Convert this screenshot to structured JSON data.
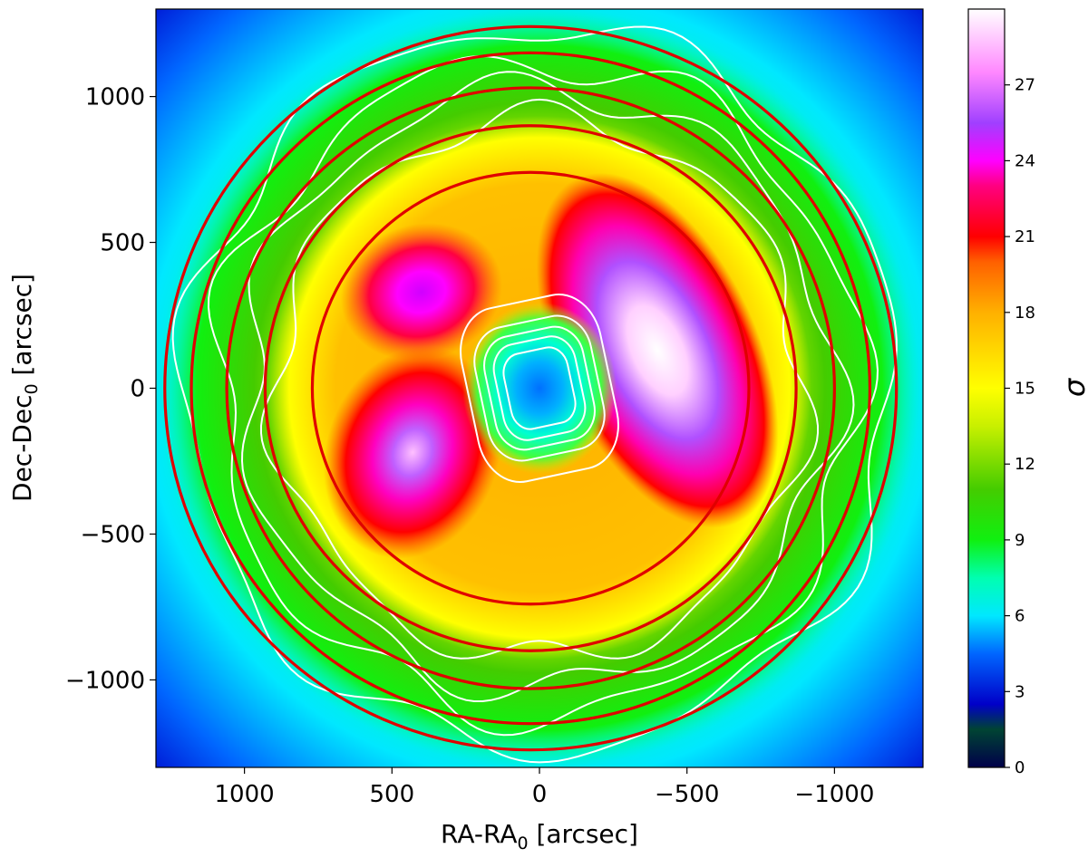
{
  "chart_data": {
    "type": "heatmap",
    "title": "",
    "xlabel": {
      "base": "RA-RA",
      "sub": "0",
      "unit": " [arcsec]"
    },
    "ylabel": {
      "base": "Dec-Dec",
      "sub": "0",
      "unit": " [arcsec]"
    },
    "colorbar_label": "σ",
    "xlim": [
      1300,
      -1300
    ],
    "ylim": [
      -1300,
      1300
    ],
    "x_ticks": [
      {
        "value": 1000,
        "label": "1000"
      },
      {
        "value": 500,
        "label": "500"
      },
      {
        "value": 0,
        "label": "0"
      },
      {
        "value": -500,
        "label": "−500"
      },
      {
        "value": -1000,
        "label": "−1000"
      }
    ],
    "y_ticks": [
      {
        "value": 1000,
        "label": "1000"
      },
      {
        "value": 500,
        "label": "500"
      },
      {
        "value": 0,
        "label": "0"
      },
      {
        "value": -500,
        "label": "−500"
      },
      {
        "value": -1000,
        "label": "−1000"
      }
    ],
    "colorbar": {
      "range": [
        0,
        30
      ],
      "ticks": [
        {
          "value": 0,
          "label": "0"
        },
        {
          "value": 3,
          "label": "3"
        },
        {
          "value": 6,
          "label": "6"
        },
        {
          "value": 9,
          "label": "9"
        },
        {
          "value": 12,
          "label": "12"
        },
        {
          "value": 15,
          "label": "15"
        },
        {
          "value": 18,
          "label": "18"
        },
        {
          "value": 21,
          "label": "21"
        },
        {
          "value": 24,
          "label": "24"
        },
        {
          "value": 27,
          "label": "27"
        }
      ],
      "colormap": [
        {
          "v": 0,
          "color": "#00004a"
        },
        {
          "v": 1.5,
          "color": "#004433"
        },
        {
          "v": 2.5,
          "color": "#0000c8"
        },
        {
          "v": 4.5,
          "color": "#0066ff"
        },
        {
          "v": 6,
          "color": "#00e8ff"
        },
        {
          "v": 7.5,
          "color": "#00ffb0"
        },
        {
          "v": 9,
          "color": "#10f010"
        },
        {
          "v": 11,
          "color": "#44cc00"
        },
        {
          "v": 13.5,
          "color": "#c8f000"
        },
        {
          "v": 15,
          "color": "#ffff00"
        },
        {
          "v": 18,
          "color": "#ffb000"
        },
        {
          "v": 20,
          "color": "#ff6000"
        },
        {
          "v": 21,
          "color": "#ff0000"
        },
        {
          "v": 23,
          "color": "#ff0080"
        },
        {
          "v": 24,
          "color": "#ff00ff"
        },
        {
          "v": 25.5,
          "color": "#a040ff"
        },
        {
          "v": 27.5,
          "color": "#ff88ff"
        },
        {
          "v": 30,
          "color": "#ffffff"
        }
      ]
    },
    "field_components": [
      {
        "name": "outer-frame",
        "value": 4
      },
      {
        "name": "green-ring",
        "value": 10
      },
      {
        "name": "inner-disk",
        "value": 17
      },
      {
        "name": "blob-upper-left",
        "x": 400,
        "y": 330,
        "value": 25
      },
      {
        "name": "blob-lower-left",
        "x": 430,
        "y": -220,
        "value": 26
      },
      {
        "name": "blob-right",
        "x": -400,
        "y": 130,
        "value": 29
      },
      {
        "name": "central-hole",
        "x": 0,
        "y": 0,
        "value": 4
      }
    ],
    "red_circles": [
      {
        "cx": 30,
        "cy": 0,
        "r": 740
      },
      {
        "cx": 30,
        "cy": 0,
        "r": 900
      },
      {
        "cx": 30,
        "cy": 0,
        "r": 1030
      },
      {
        "cx": 30,
        "cy": 0,
        "r": 1150
      },
      {
        "cx": 30,
        "cy": 0,
        "r": 1240
      }
    ],
    "white_contours": {
      "inner_loops": [
        {
          "x": 0,
          "y": 0,
          "rx": 110,
          "ry": 130
        },
        {
          "x": 0,
          "y": 0,
          "rx": 140,
          "ry": 165
        },
        {
          "x": 0,
          "y": 0,
          "rx": 170,
          "ry": 195
        },
        {
          "x": 0,
          "y": 0,
          "rx": 200,
          "ry": 230
        },
        {
          "x": 0,
          "y": 0,
          "rx": 240,
          "ry": 300
        }
      ],
      "wavy_rings": [
        {
          "r": 900,
          "amp": 40
        },
        {
          "r": 1000,
          "amp": 45
        },
        {
          "r": 1090,
          "amp": 50
        },
        {
          "r": 1200,
          "amp": 45
        }
      ]
    }
  }
}
